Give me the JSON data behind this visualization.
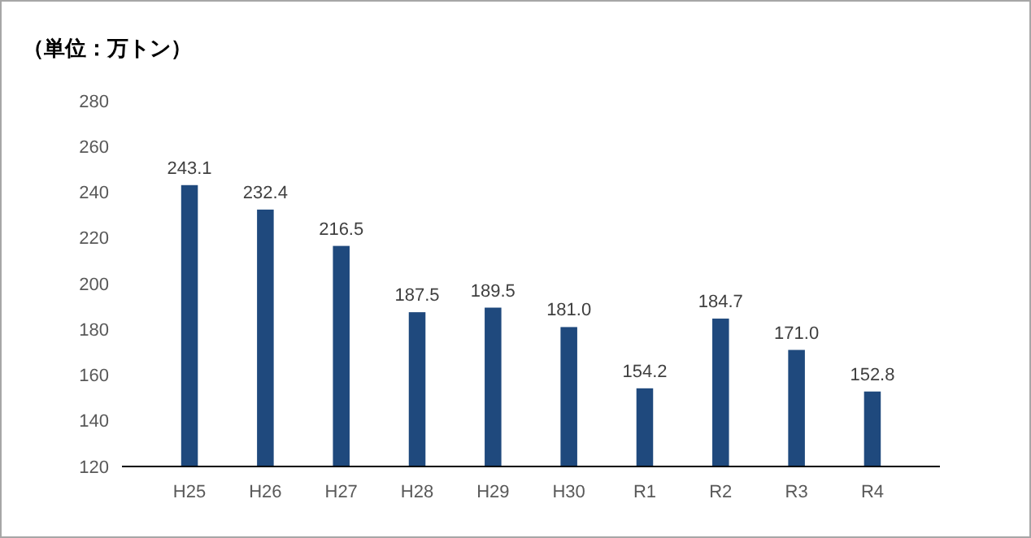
{
  "chart_data": {
    "type": "bar",
    "ylabel": "（単位：万トン）",
    "categories": [
      "H25",
      "H26",
      "H27",
      "H28",
      "H29",
      "H30",
      "R1",
      "R2",
      "R3",
      "R4"
    ],
    "values": [
      243.1,
      232.4,
      216.5,
      187.5,
      189.5,
      181.0,
      154.2,
      184.7,
      171.0,
      152.8
    ],
    "value_labels": [
      "243.1",
      "232.4",
      "216.5",
      "187.5",
      "189.5",
      "181.0",
      "154.2",
      "184.7",
      "171.0",
      "152.8"
    ],
    "color": "#1f497d",
    "ylim": [
      120,
      280
    ],
    "yticks": [
      120,
      140,
      160,
      180,
      200,
      220,
      240,
      260,
      280
    ],
    "grid": false
  }
}
